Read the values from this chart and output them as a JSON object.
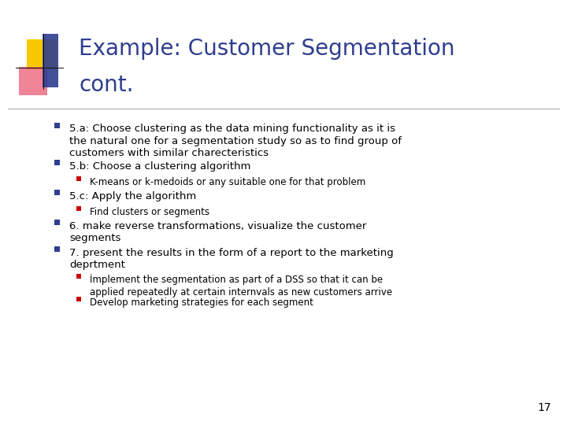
{
  "title_line1": "Example: Customer Segmentation",
  "title_line2": "cont.",
  "title_color": "#2E3D8F",
  "bg_color": "#FFFFFF",
  "slide_number": "17",
  "accent_yellow": "#F5C800",
  "accent_red": "#E8506A",
  "accent_blue": "#2E3D8F",
  "bullet_color": "#2E3D8F",
  "sub_bullet_color": "#CC0000",
  "text_color": "#000000",
  "title_font_size": 20,
  "body_font_size": 9.5,
  "sub_font_size": 8.5,
  "bullets": [
    {
      "level": 1,
      "text": "5.a: Choose clustering as the data mining functionality as it is\nthe natural one for a segmentation study so as to find group of\ncustomers with similar charecteristics",
      "nlines": 3
    },
    {
      "level": 1,
      "text": "5.b: Choose a clustering algorithm",
      "nlines": 1
    },
    {
      "level": 2,
      "text": "K-means or k-medoids or any suitable one for that problem",
      "nlines": 1
    },
    {
      "level": 1,
      "text": "5.c: Apply the algorithm",
      "nlines": 1
    },
    {
      "level": 2,
      "text": "Find clusters or segments",
      "nlines": 1
    },
    {
      "level": 1,
      "text": "6. make reverse transformations, visualize the customer\nsegments",
      "nlines": 2
    },
    {
      "level": 1,
      "text": "7. present the results in the form of a report to the marketing\ndeprtment",
      "nlines": 2
    },
    {
      "level": 2,
      "text": "İmplement the segmentation as part of a DSS so that it can be\napplied repeatedly at certain internvals as new customers arrive",
      "nlines": 2
    },
    {
      "level": 2,
      "text": "Develop marketing strategies for each segment",
      "nlines": 1
    }
  ]
}
